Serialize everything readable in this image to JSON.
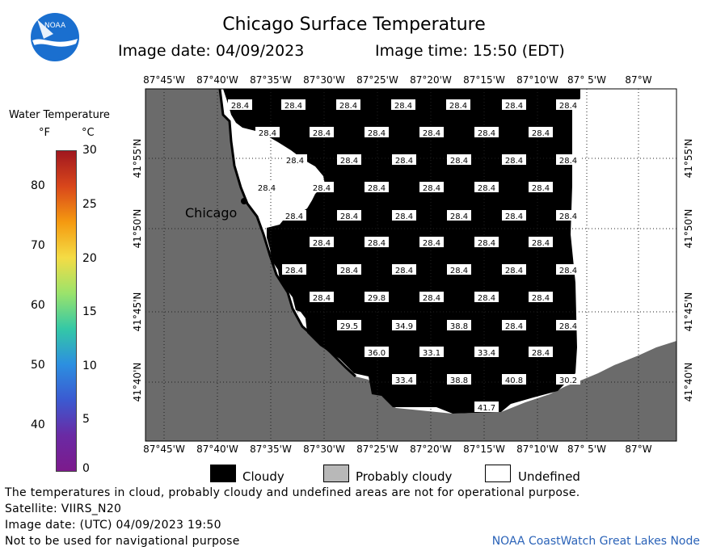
{
  "header": {
    "title": "Chicago Surface Temperature",
    "image_date": "Image date: 04/09/2023",
    "image_time": "Image time: 15:50 (EDT)"
  },
  "logo": {
    "text": "NOAA",
    "icon": "noaa-logo-icon"
  },
  "colorbar": {
    "title": "Water Temperature",
    "unit_f": "°F",
    "unit_c": "°C",
    "f_ticks": [
      "80",
      "70",
      "60",
      "50",
      "40"
    ],
    "c_ticks": [
      "30",
      "25",
      "20",
      "15",
      "10",
      "5",
      "0"
    ],
    "stops": [
      "#a0171f",
      "#d9471b",
      "#f59a10",
      "#f4dc45",
      "#9be36b",
      "#34c8a6",
      "#2c8fe0",
      "#3b5ad1",
      "#6a2aa4",
      "#7c1a8c"
    ]
  },
  "map": {
    "lon_labels": [
      "87°45'W",
      "87°40'W",
      "87°35'W",
      "87°30'W",
      "87°25'W",
      "87°20'W",
      "87°15'W",
      "87°10'W",
      "87° 5'W",
      "87°W"
    ],
    "lat_labels": [
      "41°55'N",
      "41°50'N",
      "41°45'N",
      "41°40'N"
    ],
    "city_label": "Chicago",
    "colors": {
      "land": "#6b6b6b",
      "cloudy": "#000000",
      "undefined": "#ffffff"
    },
    "values": [
      [
        "28.4",
        "28.4",
        "28.4",
        "28.4",
        "28.4",
        "28.4",
        "28.4"
      ],
      [
        "28.4",
        "28.4",
        "28.4",
        "28.4",
        "28.4",
        "28.4"
      ],
      [
        "28.4",
        "28.4",
        "28.4",
        "28.4",
        "28.4",
        "28.4"
      ],
      [
        "28.4",
        "28.4",
        "28.4",
        "28.4",
        "28.4",
        "28.4"
      ],
      [
        "28.4",
        "28.4",
        "28.4",
        "28.4",
        "28.4",
        "28.4"
      ],
      [
        "28.4",
        "28.4",
        "28.4",
        "28.4",
        "28.4"
      ],
      [
        "28.4",
        "28.4",
        "28.4",
        "28.4",
        "28.4",
        "28.4"
      ],
      [
        "28.4",
        "29.8",
        "28.4",
        "28.4",
        "28.4"
      ],
      [
        "29.5",
        "34.9",
        "38.8",
        "28.4",
        "28.4"
      ],
      [
        "36.0",
        "33.1",
        "33.4",
        "28.4"
      ],
      [
        "33.4",
        "38.8",
        "40.8",
        "30.2"
      ],
      [
        "41.7"
      ]
    ]
  },
  "key": {
    "cloudy": "Cloudy",
    "probably_cloudy": "Probably cloudy",
    "undefined": "Undefined"
  },
  "footer": {
    "disclaimer": "The temperatures in cloud, probably cloudy and undefined areas are not for operational purpose.",
    "satellite": "Satellite: VIIRS_N20",
    "utc_date": "Image date: (UTC) 04/09/2023  19:50",
    "nav_warning": "Not to be used for navigational purpose",
    "credit": "NOAA CoastWatch Great Lakes Node"
  }
}
